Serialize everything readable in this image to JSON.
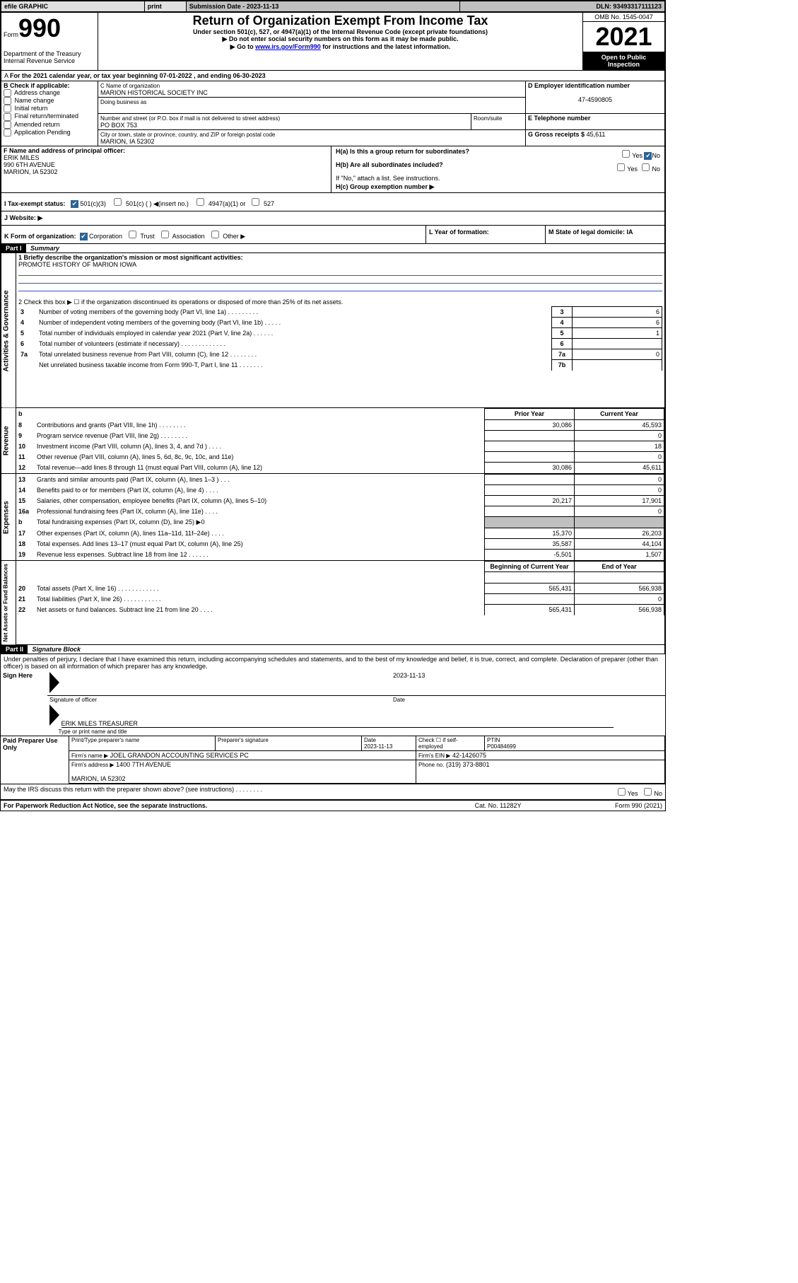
{
  "topbar": {
    "efile": "efile GRAPHIC",
    "print": "print",
    "sub_label": "Submission Date - 2023-11-13",
    "dln": "DLN: 93493317111123"
  },
  "header": {
    "form_word": "Form",
    "form_num": "990",
    "title": "Return of Organization Exempt From Income Tax",
    "subtitle": "Under section 501(c), 527, or 4947(a)(1) of the Internal Revenue Code (except private foundations)",
    "warn": "▶ Do not enter social security numbers on this form as it may be made public.",
    "goto_pre": "▶ Go to ",
    "goto_link": "www.irs.gov/Form990",
    "goto_post": " for instructions and the latest information.",
    "dept": "Department of the Treasury",
    "irs": "Internal Revenue Service",
    "omb": "OMB No. 1545-0047",
    "year": "2021",
    "open": "Open to Public Inspection"
  },
  "lineA": "For the 2021 calendar year, or tax year beginning 07-01-2022   , and ending 06-30-2023",
  "boxB": {
    "label": "B Check if applicable:",
    "items": [
      "Address change",
      "Name change",
      "Initial return",
      "Final return/terminated",
      "Amended return",
      "Application Pending"
    ]
  },
  "boxC": {
    "label_name": "C Name of organization",
    "org_name": "MARION HISTORICAL SOCIETY INC",
    "dba": "Doing business as",
    "street_label": "Number and street (or P.O. box if mail is not delivered to street address)",
    "room_label": "Room/suite",
    "street": "PO BOX 753",
    "city_label": "City or town, state or province, country, and ZIP or foreign postal code",
    "city": "MARION, IA  52302"
  },
  "boxD": {
    "label": "D Employer identification number",
    "value": "47-4590805"
  },
  "boxE": {
    "label": "E Telephone number",
    "value": ""
  },
  "boxG": {
    "label": "G Gross receipts $",
    "value": "45,611"
  },
  "boxF": {
    "label": "F  Name and address of principal officer:",
    "name": "ERIK MILES",
    "street": "990 6TH AVENUE",
    "city": "MARION, IA  52302"
  },
  "boxH": {
    "a": "H(a)  Is this a group return for subordinates?",
    "a_no": true,
    "b": "H(b)  Are all subordinates included?",
    "b_note": "If \"No,\" attach a list. See instructions.",
    "c": "H(c)  Group exemption number ▶"
  },
  "lineI": {
    "label": "I    Tax-exempt status:",
    "c501c3": "501(c)(3)",
    "c501c": "501(c) ( ) ◀(insert no.)",
    "c4947": "4947(a)(1) or",
    "c527": "527"
  },
  "lineJ": "J    Website: ▶",
  "lineK": {
    "label": "K Form of organization:",
    "corp": "Corporation",
    "trust": "Trust",
    "assoc": "Association",
    "other": "Other ▶",
    "L": "L Year of formation:",
    "M": "M State of legal domicile: IA"
  },
  "partI": {
    "header": "Part I",
    "title": "Summary",
    "q1": "1   Briefly describe the organization's mission or most significant activities:",
    "mission": "PROMOTE HISTORY OF MARION IOWA",
    "q2": "2    Check this box ▶ ☐  if the organization discontinued its operations or disposed of more than 25% of its net assets.",
    "rows_gov": [
      {
        "n": "3",
        "t": "Number of voting members of the governing body (Part VI, line 1a)   .    .    .    .    .    .    .    .    .",
        "box": "3",
        "v": "6"
      },
      {
        "n": "4",
        "t": "Number of independent voting members of the governing body (Part VI, line 1b)   .    .    .    .    .",
        "box": "4",
        "v": "6"
      },
      {
        "n": "5",
        "t": "Total number of individuals employed in calendar year 2021 (Part V, line 2a)   .    .    .    .    .    .",
        "box": "5",
        "v": "1"
      },
      {
        "n": "6",
        "t": "Total number of volunteers (estimate if necessary)   .    .    .    .    .    .    .    .    .    .    .    .    .",
        "box": "6",
        "v": ""
      },
      {
        "n": "7a",
        "t": "Total unrelated business revenue from Part VIII, column (C), line 12   .    .    .    .    .    .    .    .",
        "box": "7a",
        "v": "0"
      },
      {
        "n": "",
        "t": "Net unrelated business taxable income from Form 990-T, Part I, line 11   .    .    .    .    .    .    .",
        "box": "7b",
        "v": ""
      }
    ],
    "prior": "Prior Year",
    "current": "Current Year",
    "rows_rev": [
      {
        "n": "8",
        "t": "Contributions and grants (Part VIII, line 1h)   .    .    .    .    .    .    .    .",
        "p": "30,086",
        "c": "45,593"
      },
      {
        "n": "9",
        "t": "Program service revenue (Part VIII, line 2g)   .    .    .    .    .    .    .    .",
        "p": "",
        "c": "0"
      },
      {
        "n": "10",
        "t": "Investment income (Part VIII, column (A), lines 3, 4, and 7d )   .    .    .    .",
        "p": "",
        "c": "18"
      },
      {
        "n": "11",
        "t": "Other revenue (Part VIII, column (A), lines 5, 6d, 8c, 9c, 10c, and 11e)",
        "p": "",
        "c": "0"
      },
      {
        "n": "12",
        "t": "Total revenue—add lines 8 through 11 (must equal Part VIII, column (A), line 12)",
        "p": "30,086",
        "c": "45,611"
      }
    ],
    "rows_exp": [
      {
        "n": "13",
        "t": "Grants and similar amounts paid (Part IX, column (A), lines 1–3 )   .    .    .",
        "p": "",
        "c": "0"
      },
      {
        "n": "14",
        "t": "Benefits paid to or for members (Part IX, column (A), line 4)   .    .    .    .",
        "p": "",
        "c": "0"
      },
      {
        "n": "15",
        "t": "Salaries, other compensation, employee benefits (Part IX, column (A), lines 5–10)",
        "p": "20,217",
        "c": "17,901"
      },
      {
        "n": "16a",
        "t": "Professional fundraising fees (Part IX, column (A), line 11e)   .    .    .    .",
        "p": "",
        "c": "0"
      },
      {
        "n": "b",
        "t": "Total fundraising expenses (Part IX, column (D), line 25) ▶0",
        "p": "grey",
        "c": "grey"
      },
      {
        "n": "17",
        "t": "Other expenses (Part IX, column (A), lines 11a–11d, 11f–24e)   .    .    .    .",
        "p": "15,370",
        "c": "26,203"
      },
      {
        "n": "18",
        "t": "Total expenses. Add lines 13–17 (must equal Part IX, column (A), line 25)",
        "p": "35,587",
        "c": "44,104"
      },
      {
        "n": "19",
        "t": "Revenue less expenses. Subtract line 18 from line 12   .    .    .    .    .    .",
        "p": "-5,501",
        "c": "1,507"
      }
    ],
    "beg": "Beginning of Current Year",
    "end": "End of Year",
    "rows_net": [
      {
        "n": "20",
        "t": "Total assets (Part X, line 16)   .    .    .    .    .    .    .    .    .    .    .    .",
        "p": "565,431",
        "c": "566,938"
      },
      {
        "n": "21",
        "t": "Total liabilities (Part X, line 26)   .    .    .    .    .    .    .    .    .    .    .",
        "p": "",
        "c": "0"
      },
      {
        "n": "22",
        "t": "Net assets or fund balances. Subtract line 21 from line 20   .    .    .    .",
        "p": "565,431",
        "c": "566,938"
      }
    ],
    "side_labels": {
      "gov": "Activities & Governance",
      "rev": "Revenue",
      "exp": "Expenses",
      "net": "Net Assets or Fund Balances"
    }
  },
  "partII": {
    "header": "Part II",
    "title": "Signature Block",
    "jurat": "Under penalties of perjury, I declare that I have examined this return, including accompanying schedules and statements, and to the best of my knowledge and belief, it is true, correct, and complete. Declaration of preparer (other than officer) is based on all information of which preparer has any knowledge.",
    "sign_here": "Sign Here",
    "sig_officer": "Signature of officer",
    "date": "Date",
    "date_val": "2023-11-13",
    "name_title": "ERIK MILES  TREASURER",
    "type_name": "Type or print name and title",
    "paid": "Paid Preparer Use Only",
    "pt_name": "Print/Type preparer's name",
    "pt_sig": "Preparer's signature",
    "pt_date": "Date",
    "pt_date_val": "2023-11-13",
    "pt_check": "Check ☐ if self-employed",
    "ptin_l": "PTIN",
    "ptin": "P00484699",
    "firm_name_l": "Firm's name   ▶",
    "firm_name": "JOEL GRANDON ACCOUNTING SERVICES PC",
    "firm_ein_l": "Firm's EIN ▶",
    "firm_ein": "42-1426075",
    "firm_addr_l": "Firm's address ▶",
    "firm_addr": "1400 7TH AVENUE",
    "firm_city": "MARION, IA  52302",
    "phone_l": "Phone no.",
    "phone": "(319) 373-8801",
    "may": "May the IRS discuss this return with the preparer shown above? (see instructions)    .    .    .    .    .    .    .    .",
    "paperwork": "For Paperwork Reduction Act Notice, see the separate instructions.",
    "cat": "Cat. No. 11282Y",
    "form": "Form 990 (2021)"
  }
}
